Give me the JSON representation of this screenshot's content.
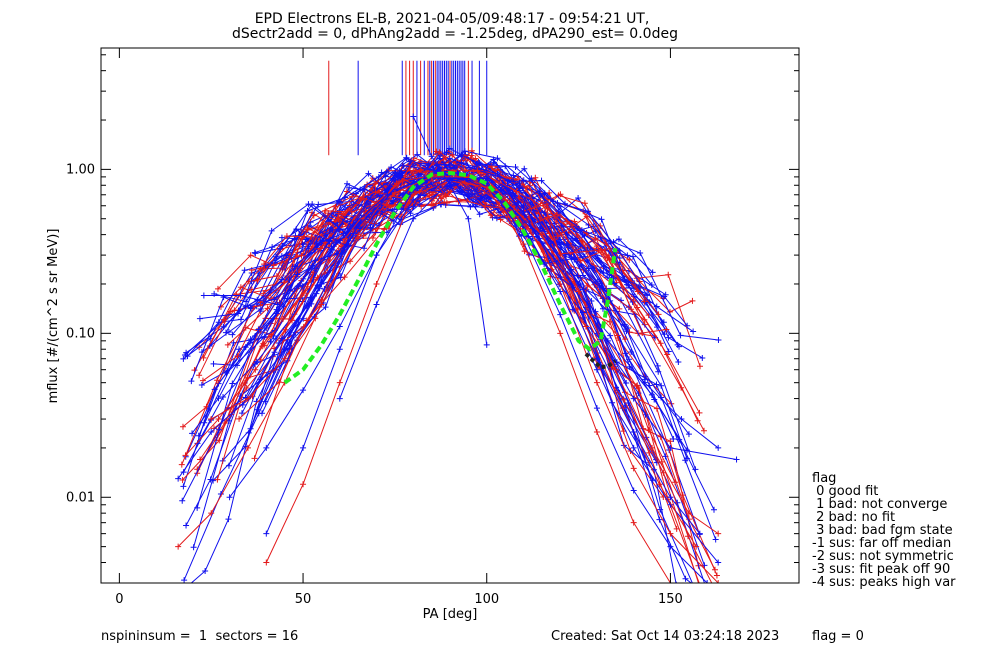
{
  "chart_data": {
    "type": "line",
    "title": "EPD Electrons EL-B, 2021-04-05/09:48:17 - 09:54:21 UT,",
    "subtitle": "dSectr2add = 0, dPhAng2add = -1.25deg, dPA290_est=   0.0deg",
    "xlabel": "PA [deg]",
    "ylabel": "mflux [#/(cm^2 s sr MeV)]",
    "xlim": [
      -5,
      185
    ],
    "ylim": [
      0.003,
      5.5
    ],
    "yscale": "log",
    "grid": false,
    "xticks": [
      0,
      50,
      100,
      150
    ],
    "yticks": [
      0.01,
      0.1,
      1.0
    ],
    "ytick_labels": [
      "0.01",
      "0.10",
      "1.00"
    ],
    "series_colors": {
      "a": "#e31a1c",
      "b": "#1010ee",
      "fit": "#22ee22",
      "dark": "#222222"
    },
    "fit_curve": {
      "x": [
        45,
        50,
        55,
        60,
        65,
        70,
        75,
        80,
        85,
        90,
        95,
        100,
        105,
        110,
        115,
        120,
        125,
        128,
        131,
        133,
        135
      ],
      "y": [
        0.05,
        0.06,
        0.085,
        0.13,
        0.21,
        0.35,
        0.55,
        0.78,
        0.93,
        0.95,
        0.92,
        0.82,
        0.62,
        0.42,
        0.26,
        0.15,
        0.09,
        0.08,
        0.09,
        0.16,
        0.33
      ]
    },
    "dark_segment": {
      "x": [
        127,
        129,
        131,
        133,
        135
      ],
      "y": [
        0.075,
        0.068,
        0.062,
        0.063,
        0.068
      ]
    },
    "spike_lines": {
      "a": [
        57,
        78,
        79,
        80,
        82,
        84,
        85,
        86,
        90,
        95
      ],
      "b": [
        65,
        77,
        81,
        83,
        84.5,
        85.5,
        86.5,
        87,
        87.5,
        88,
        88.5,
        89,
        89.5,
        90.5,
        91,
        91.5,
        92,
        92.5,
        93,
        93.5,
        94,
        96,
        98,
        100
      ]
    },
    "sample_profiles": [
      {
        "color": "a",
        "x": [
          16,
          25,
          35,
          45,
          55,
          65,
          75,
          80,
          90,
          100,
          110,
          120,
          130,
          140,
          150,
          163
        ],
        "y": [
          0.005,
          0.008,
          0.02,
          0.05,
          0.15,
          0.4,
          0.8,
          0.98,
          0.9,
          0.88,
          0.5,
          0.2,
          0.05,
          0.015,
          0.006,
          0.003
        ]
      },
      {
        "color": "b",
        "x": [
          16,
          25,
          35,
          45,
          55,
          65,
          75,
          85,
          92,
          100,
          110,
          120,
          130,
          140,
          150,
          163
        ],
        "y": [
          0.013,
          0.025,
          0.04,
          0.08,
          0.2,
          0.45,
          0.75,
          0.92,
          0.95,
          0.85,
          0.45,
          0.18,
          0.06,
          0.02,
          0.009,
          0.004
        ]
      },
      {
        "color": "a",
        "x": [
          18,
          27,
          37,
          47,
          57,
          67,
          77,
          87,
          97,
          107,
          117,
          127,
          137,
          147,
          157
        ],
        "y": [
          0.018,
          0.03,
          0.06,
          0.12,
          0.28,
          0.55,
          0.85,
          0.93,
          0.8,
          0.55,
          0.3,
          0.11,
          0.035,
          0.012,
          0.005
        ]
      },
      {
        "color": "b",
        "x": [
          23,
          33,
          43,
          53,
          63,
          73,
          83,
          93,
          103,
          113,
          123,
          133,
          143,
          153,
          163
        ],
        "y": [
          0.17,
          0.17,
          0.15,
          0.25,
          0.45,
          0.7,
          0.88,
          0.9,
          0.7,
          0.42,
          0.2,
          0.09,
          0.05,
          0.03,
          0.02
        ]
      },
      {
        "color": "a",
        "x": [
          40,
          50,
          60,
          70,
          80,
          90,
          100,
          110,
          120,
          130,
          140,
          150
        ],
        "y": [
          0.004,
          0.012,
          0.05,
          0.2,
          0.7,
          0.85,
          0.78,
          0.35,
          0.1,
          0.025,
          0.007,
          0.003
        ]
      },
      {
        "color": "b",
        "x": [
          40,
          50,
          60,
          70,
          80,
          90,
          100,
          110,
          120,
          130,
          140,
          150,
          160
        ],
        "y": [
          0.006,
          0.02,
          0.08,
          0.3,
          0.75,
          0.9,
          0.82,
          0.4,
          0.13,
          0.035,
          0.011,
          0.005,
          0.003
        ]
      },
      {
        "color": "b",
        "x": [
          60,
          70,
          80,
          90,
          100,
          110,
          120,
          130,
          140,
          150,
          168
        ],
        "y": [
          0.04,
          0.15,
          0.5,
          0.85,
          0.9,
          0.6,
          0.28,
          0.1,
          0.04,
          0.02,
          0.017
        ]
      },
      {
        "color": "a",
        "x": [
          25,
          35,
          45,
          55,
          65,
          75,
          85,
          95,
          105,
          115,
          125,
          135,
          145,
          155,
          163
        ],
        "y": [
          0.03,
          0.04,
          0.07,
          0.16,
          0.38,
          0.72,
          0.9,
          0.9,
          0.65,
          0.4,
          0.18,
          0.06,
          0.02,
          0.008,
          0.006
        ]
      },
      {
        "color": "b",
        "x": [
          30,
          40,
          50,
          60,
          70,
          80,
          90,
          100,
          110,
          120,
          130,
          140,
          150,
          158
        ],
        "y": [
          0.01,
          0.02,
          0.045,
          0.11,
          0.3,
          0.65,
          0.88,
          0.88,
          0.55,
          0.22,
          0.07,
          0.025,
          0.01,
          0.006
        ]
      },
      {
        "color": "b",
        "x": [
          80,
          85,
          90,
          95,
          100
        ],
        "y": [
          2.1,
          1.2,
          0.8,
          0.5,
          0.085
        ]
      }
    ]
  },
  "footer": {
    "spin_info": "nspininsum =  1  sectors = 16",
    "created": "Created: Sat Oct 14 03:24:18 2023",
    "flag_value": "flag = 0"
  },
  "legend": {
    "title": "flag",
    "items": [
      " 0 good fit",
      " 1 bad: not converge",
      " 2 bad: no fit",
      " 3 bad: bad fgm state",
      "-1 sus: far off median",
      "-2 sus: not symmetric",
      "-3 sus: fit peak off 90",
      "-4 sus: peaks high var"
    ]
  }
}
